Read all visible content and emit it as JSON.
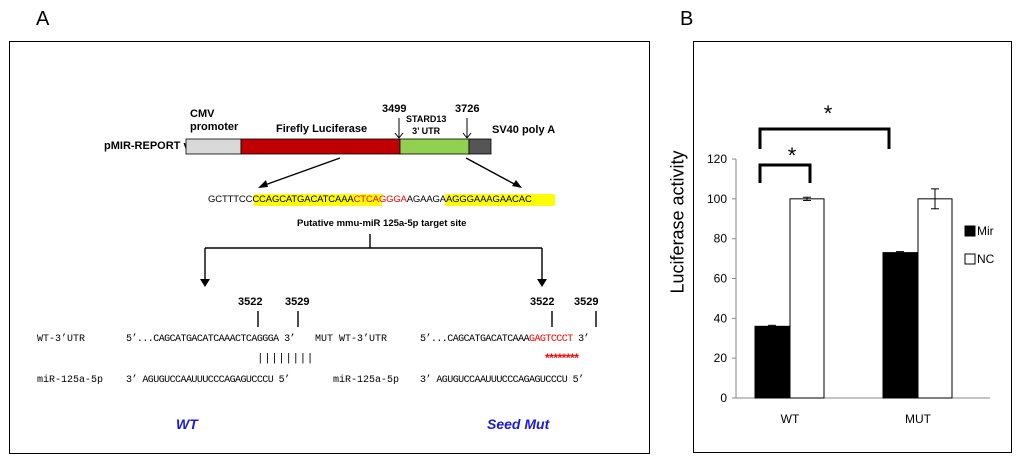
{
  "panels": {
    "a": "A",
    "b": "B"
  },
  "vector": {
    "name": "pMIR-REPORT vector",
    "cmv": [
      "CMV",
      "promoter"
    ],
    "firefly": "Firefly Luciferase",
    "utr": [
      "STARD13",
      "3’ UTR"
    ],
    "sv40": "SV40 poly A",
    "pos_start": "3499",
    "pos_end": "3726",
    "colors": {
      "cmv": "#d9d9d9",
      "firefly": "#c00000",
      "utr": "#92d050",
      "sv40": "#555555",
      "highlight": "#ffff00",
      "seed": "#ff0000"
    }
  },
  "site_sequence": {
    "pre": "GCTTTCC",
    "hl1": "CCAGCATGACATCAAA",
    "seed": "CTCAGGGA",
    "hl2": "AGAAGAAGGGAAAG",
    "post": "AACAC",
    "caption": "Putative mmu-miR 125a-5p  target site"
  },
  "wt": {
    "pos1": "3522",
    "pos2": "3529",
    "utr_label": "WT-3’UTR",
    "utr_seq": "5’...CAGCATGACATCAAACTCAGGGA  3’",
    "pairing": "||||||||",
    "mir_label": "miR-125a-5p",
    "mir_seq": "3’  AGUGUCCAAUUUCCCAGAGUCCCU 5’",
    "title": "WT"
  },
  "mut": {
    "pos1": "3522",
    "pos2": "3529",
    "utr_label": "MUT WT-3’UTR",
    "utr_pre": "5’...CAGCATGACATCAAA",
    "utr_mut": "GAGTCCCT",
    "utr_post": " 3’",
    "stars": "********",
    "mir_label": "miR-125a-5p",
    "mir_seq": "3’  AGUGUCCAAUUUCCCAGAGUCCCU 5’",
    "title": "Seed Mut"
  },
  "chart_data": {
    "type": "bar",
    "ylabel": "Luciferase activity",
    "xlabel": "",
    "ylim": [
      0,
      120
    ],
    "yticks": [
      0,
      20,
      40,
      60,
      80,
      100,
      120
    ],
    "categories": [
      "WT",
      "MUT"
    ],
    "series": [
      {
        "name": "Mir",
        "values": [
          36,
          73
        ],
        "errors": [
          0.5,
          0.5
        ],
        "color": "#000000"
      },
      {
        "name": "NC",
        "values": [
          100,
          100
        ],
        "errors": [
          0.8,
          5
        ],
        "color": "#ffffff"
      }
    ],
    "legend_position": "right",
    "annotations": [
      {
        "text": "*",
        "between": "WT Mir vs WT NC"
      },
      {
        "text": "*",
        "between": "WT Mir vs MUT Mir"
      }
    ],
    "grid": false
  }
}
